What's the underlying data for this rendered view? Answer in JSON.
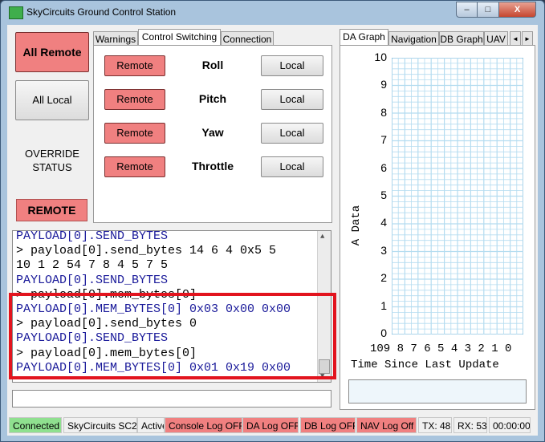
{
  "window": {
    "title": "SkyCircuits Ground Control Station",
    "minimize": "–",
    "maximize": "□",
    "close": "X"
  },
  "left_panel": {
    "all_remote": "All Remote",
    "all_local": "All Local",
    "override_label": "OVERRIDE STATUS",
    "override_value": "REMOTE"
  },
  "left_tabs": [
    {
      "label": "Warnings"
    },
    {
      "label": "Control Switching",
      "active": true
    },
    {
      "label": "Connection"
    }
  ],
  "controls": [
    {
      "remote_label": "Remote",
      "axis": "Roll",
      "local_label": "Local"
    },
    {
      "remote_label": "Remote",
      "axis": "Pitch",
      "local_label": "Local"
    },
    {
      "remote_label": "Remote",
      "axis": "Yaw",
      "local_label": "Local"
    },
    {
      "remote_label": "Remote",
      "axis": "Throttle",
      "local_label": "Local"
    }
  ],
  "console": {
    "lines": [
      {
        "text": "PAYLOAD[0].SEND_BYTES",
        "kind": "resp"
      },
      {
        "text": "> payload[0].send_bytes 14 6 4 0x5 5",
        "kind": "cmd"
      },
      {
        "text": "10 1 2 54 7 8 4 5 7 5",
        "kind": "cmd"
      },
      {
        "text": "PAYLOAD[0].SEND_BYTES",
        "kind": "resp"
      },
      {
        "text": "> payload[0].mem_bytes[0]",
        "kind": "cmd"
      },
      {
        "text": "PAYLOAD[0].MEM_BYTES[0] 0x03 0x00 0x00",
        "kind": "resp"
      },
      {
        "text": "> payload[0].send_bytes 0",
        "kind": "cmd"
      },
      {
        "text": "PAYLOAD[0].SEND_BYTES",
        "kind": "resp"
      },
      {
        "text": "> payload[0].mem_bytes[0]",
        "kind": "cmd"
      },
      {
        "text": "PAYLOAD[0].MEM_BYTES[0] 0x01 0x19 0x00",
        "kind": "resp"
      }
    ],
    "input_value": ""
  },
  "right_tabs": [
    {
      "label": "DA Graph",
      "active": true
    },
    {
      "label": "Navigation"
    },
    {
      "label": "DB Graph"
    },
    {
      "label": "UAV"
    }
  ],
  "tab_scroll": {
    "left": "◄",
    "right": "►"
  },
  "chart_data": {
    "type": "line",
    "ylabel": "A Data",
    "xlabel": "Time Since Last Update",
    "ylim": [
      0,
      10
    ],
    "xlim": [
      10,
      0
    ],
    "y_ticks": [
      "10",
      "9",
      "8",
      "7",
      "6",
      "5",
      "4",
      "3",
      "2",
      "1",
      "0"
    ],
    "x_ticks": "109 8 7 6 5 4 3 2 1 0",
    "series": [],
    "grid": true,
    "grid_color": "#b4dcf0"
  },
  "graph_readout": "",
  "status_bar": [
    {
      "text": "Connected",
      "bg": "#8fe08f"
    },
    {
      "text": "SkyCircuits SC2",
      "bg": "#f0f0f0"
    },
    {
      "text": "Active",
      "bg": "#f0f0f0"
    },
    {
      "text": "Console Log OFF",
      "bg": "#f08080"
    },
    {
      "text": "DA Log OFF",
      "bg": "#f08080"
    },
    {
      "text": "DB Log OFF",
      "bg": "#f08080"
    },
    {
      "text": "NAV Log Off",
      "bg": "#f08080"
    },
    {
      "text": "TX: 48",
      "bg": "#f0f0f0"
    },
    {
      "text": "RX: 53",
      "bg": "#f0f0f0"
    },
    {
      "text": "00:00:00",
      "bg": "#f0f0f0"
    }
  ],
  "colors": {
    "remote_active": "#f08080",
    "connected": "#8fe08f",
    "highlight_box": "#e2141e"
  }
}
